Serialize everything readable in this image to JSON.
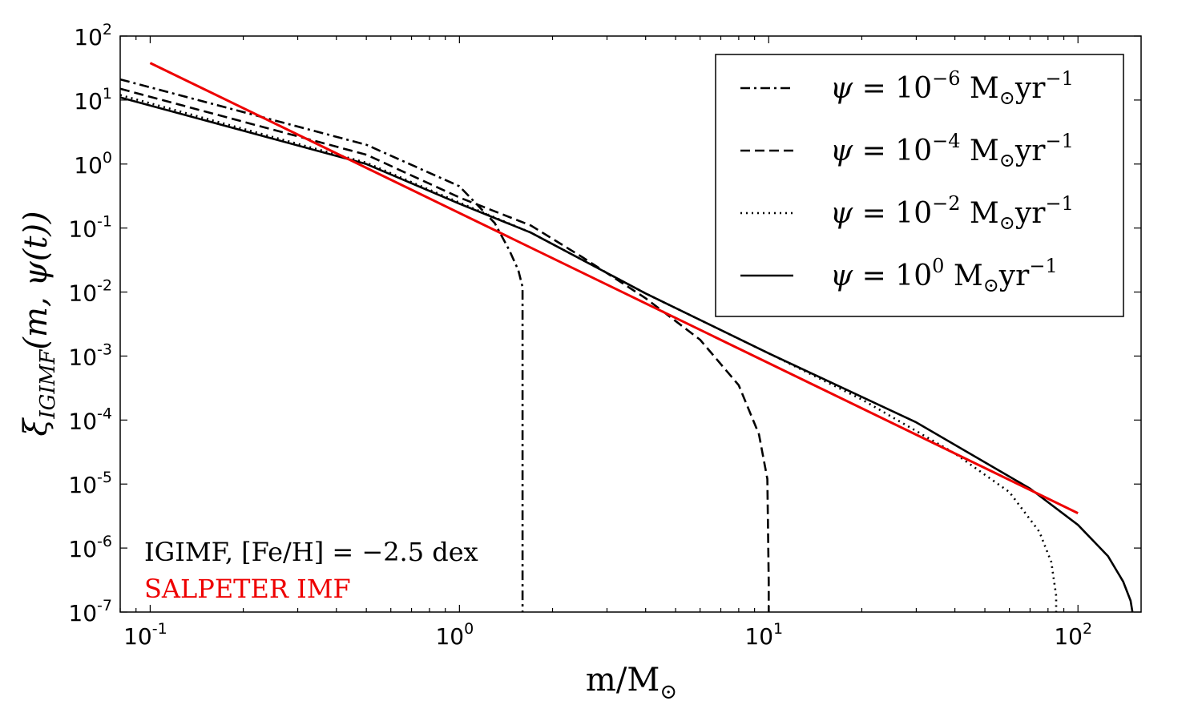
{
  "chart_data": {
    "type": "line",
    "title": "",
    "xlabel": {
      "base": "m/M",
      "sub": "⊙"
    },
    "ylabel": {
      "base": "ξ",
      "sub": "IGIMF",
      "tail": "(m, ψ(t))"
    },
    "xscale": "log",
    "yscale": "log",
    "xlim": [
      0.08,
      160
    ],
    "ylim": [
      1e-07,
      100
    ],
    "grid": false,
    "legend_location": "top-right",
    "x_ticks": [
      {
        "value": 0.1,
        "base": "10",
        "exp": "-1"
      },
      {
        "value": 1,
        "base": "10",
        "exp": "0"
      },
      {
        "value": 10,
        "base": "10",
        "exp": "1"
      },
      {
        "value": 100,
        "base": "10",
        "exp": "2"
      }
    ],
    "y_ticks": [
      {
        "value": 100,
        "base": "10",
        "exp": "2"
      },
      {
        "value": 10,
        "base": "10",
        "exp": "1"
      },
      {
        "value": 1,
        "base": "10",
        "exp": "0"
      },
      {
        "value": 0.1,
        "base": "10",
        "exp": "-1"
      },
      {
        "value": 0.01,
        "base": "10",
        "exp": "-2"
      },
      {
        "value": 0.001,
        "base": "10",
        "exp": "-3"
      },
      {
        "value": 0.0001,
        "base": "10",
        "exp": "-4"
      },
      {
        "value": 1e-05,
        "base": "10",
        "exp": "-5"
      },
      {
        "value": 1e-06,
        "base": "10",
        "exp": "-6"
      },
      {
        "value": 1e-07,
        "base": "10",
        "exp": "-7"
      }
    ],
    "series": [
      {
        "name": "psi-1e-6",
        "label": {
          "psi": "ψ",
          "eq": " = 10",
          "exp": "−6",
          "unit": " M",
          "unit_sub": "⊙",
          "unit_tail": "yr",
          "unit_exp": "−1"
        },
        "style": "dashdot",
        "color": "#000000",
        "x": [
          0.08,
          0.5,
          1.0,
          1.3,
          1.45,
          1.55,
          1.6,
          1.6
        ],
        "y": [
          21,
          2.0,
          0.45,
          0.12,
          0.045,
          0.022,
          0.012,
          1e-07
        ]
      },
      {
        "name": "psi-1e-4",
        "label": {
          "psi": "ψ",
          "eq": " = 10",
          "exp": "−4",
          "unit": " M",
          "unit_sub": "⊙",
          "unit_tail": "yr",
          "unit_exp": "−1"
        },
        "style": "dashed",
        "color": "#000000",
        "x": [
          0.08,
          0.5,
          1.0,
          1.7,
          2.5,
          4.0,
          6.0,
          8.0,
          9.3,
          9.9,
          10.0,
          10.0
        ],
        "y": [
          15,
          1.4,
          0.3,
          0.11,
          0.035,
          0.008,
          0.0018,
          0.00035,
          6e-05,
          1.2e-05,
          3e-07,
          1e-07
        ]
      },
      {
        "name": "psi-1e-2",
        "label": {
          "psi": "ψ",
          "eq": " = 10",
          "exp": "−2",
          "unit": " M",
          "unit_sub": "⊙",
          "unit_tail": "yr",
          "unit_exp": "−1"
        },
        "style": "dotted",
        "color": "#000000",
        "x": [
          0.08,
          0.5,
          1.0,
          1.7,
          4.0,
          10.0,
          20.0,
          40.0,
          60.0,
          75.0,
          82.0,
          85.0,
          85.0
        ],
        "y": [
          12,
          1.05,
          0.25,
          0.085,
          0.0095,
          0.0011,
          0.00021,
          3e-05,
          7.5e-06,
          1.8e-06,
          6e-07,
          1.8e-07,
          1e-07
        ]
      },
      {
        "name": "psi-1e0",
        "label": {
          "psi": "ψ",
          "eq": " = 10",
          "exp": "0",
          "unit": "   M",
          "unit_sub": "⊙",
          "unit_tail": "yr",
          "unit_exp": "−1"
        },
        "style": "solid",
        "color": "#000000",
        "x": [
          0.08,
          0.5,
          1.0,
          1.7,
          4.0,
          10.0,
          30.0,
          70.0,
          100.0,
          125.0,
          140.0,
          148.0,
          150.0
        ],
        "y": [
          11,
          1.0,
          0.24,
          0.085,
          0.0095,
          0.0011,
          9.2e-05,
          8.5e-06,
          2.3e-06,
          7.5e-07,
          3e-07,
          1.5e-07,
          1e-07
        ]
      },
      {
        "name": "salpeter",
        "label": {
          "text": "SALPETER IMF"
        },
        "style": "solid",
        "color": "#ee0000",
        "x": [
          0.1,
          100
        ],
        "y": [
          38,
          3.5e-06
        ]
      }
    ],
    "annotations": [
      {
        "name": "igimf-annotation",
        "text": "IGIMF, [Fe/H] = −2.5 dex",
        "color": "#000000",
        "location": "bottom-left"
      },
      {
        "name": "salpeter-annotation",
        "text": "SALPETER IMF",
        "color": "#ee0000",
        "location": "bottom-left"
      }
    ]
  }
}
